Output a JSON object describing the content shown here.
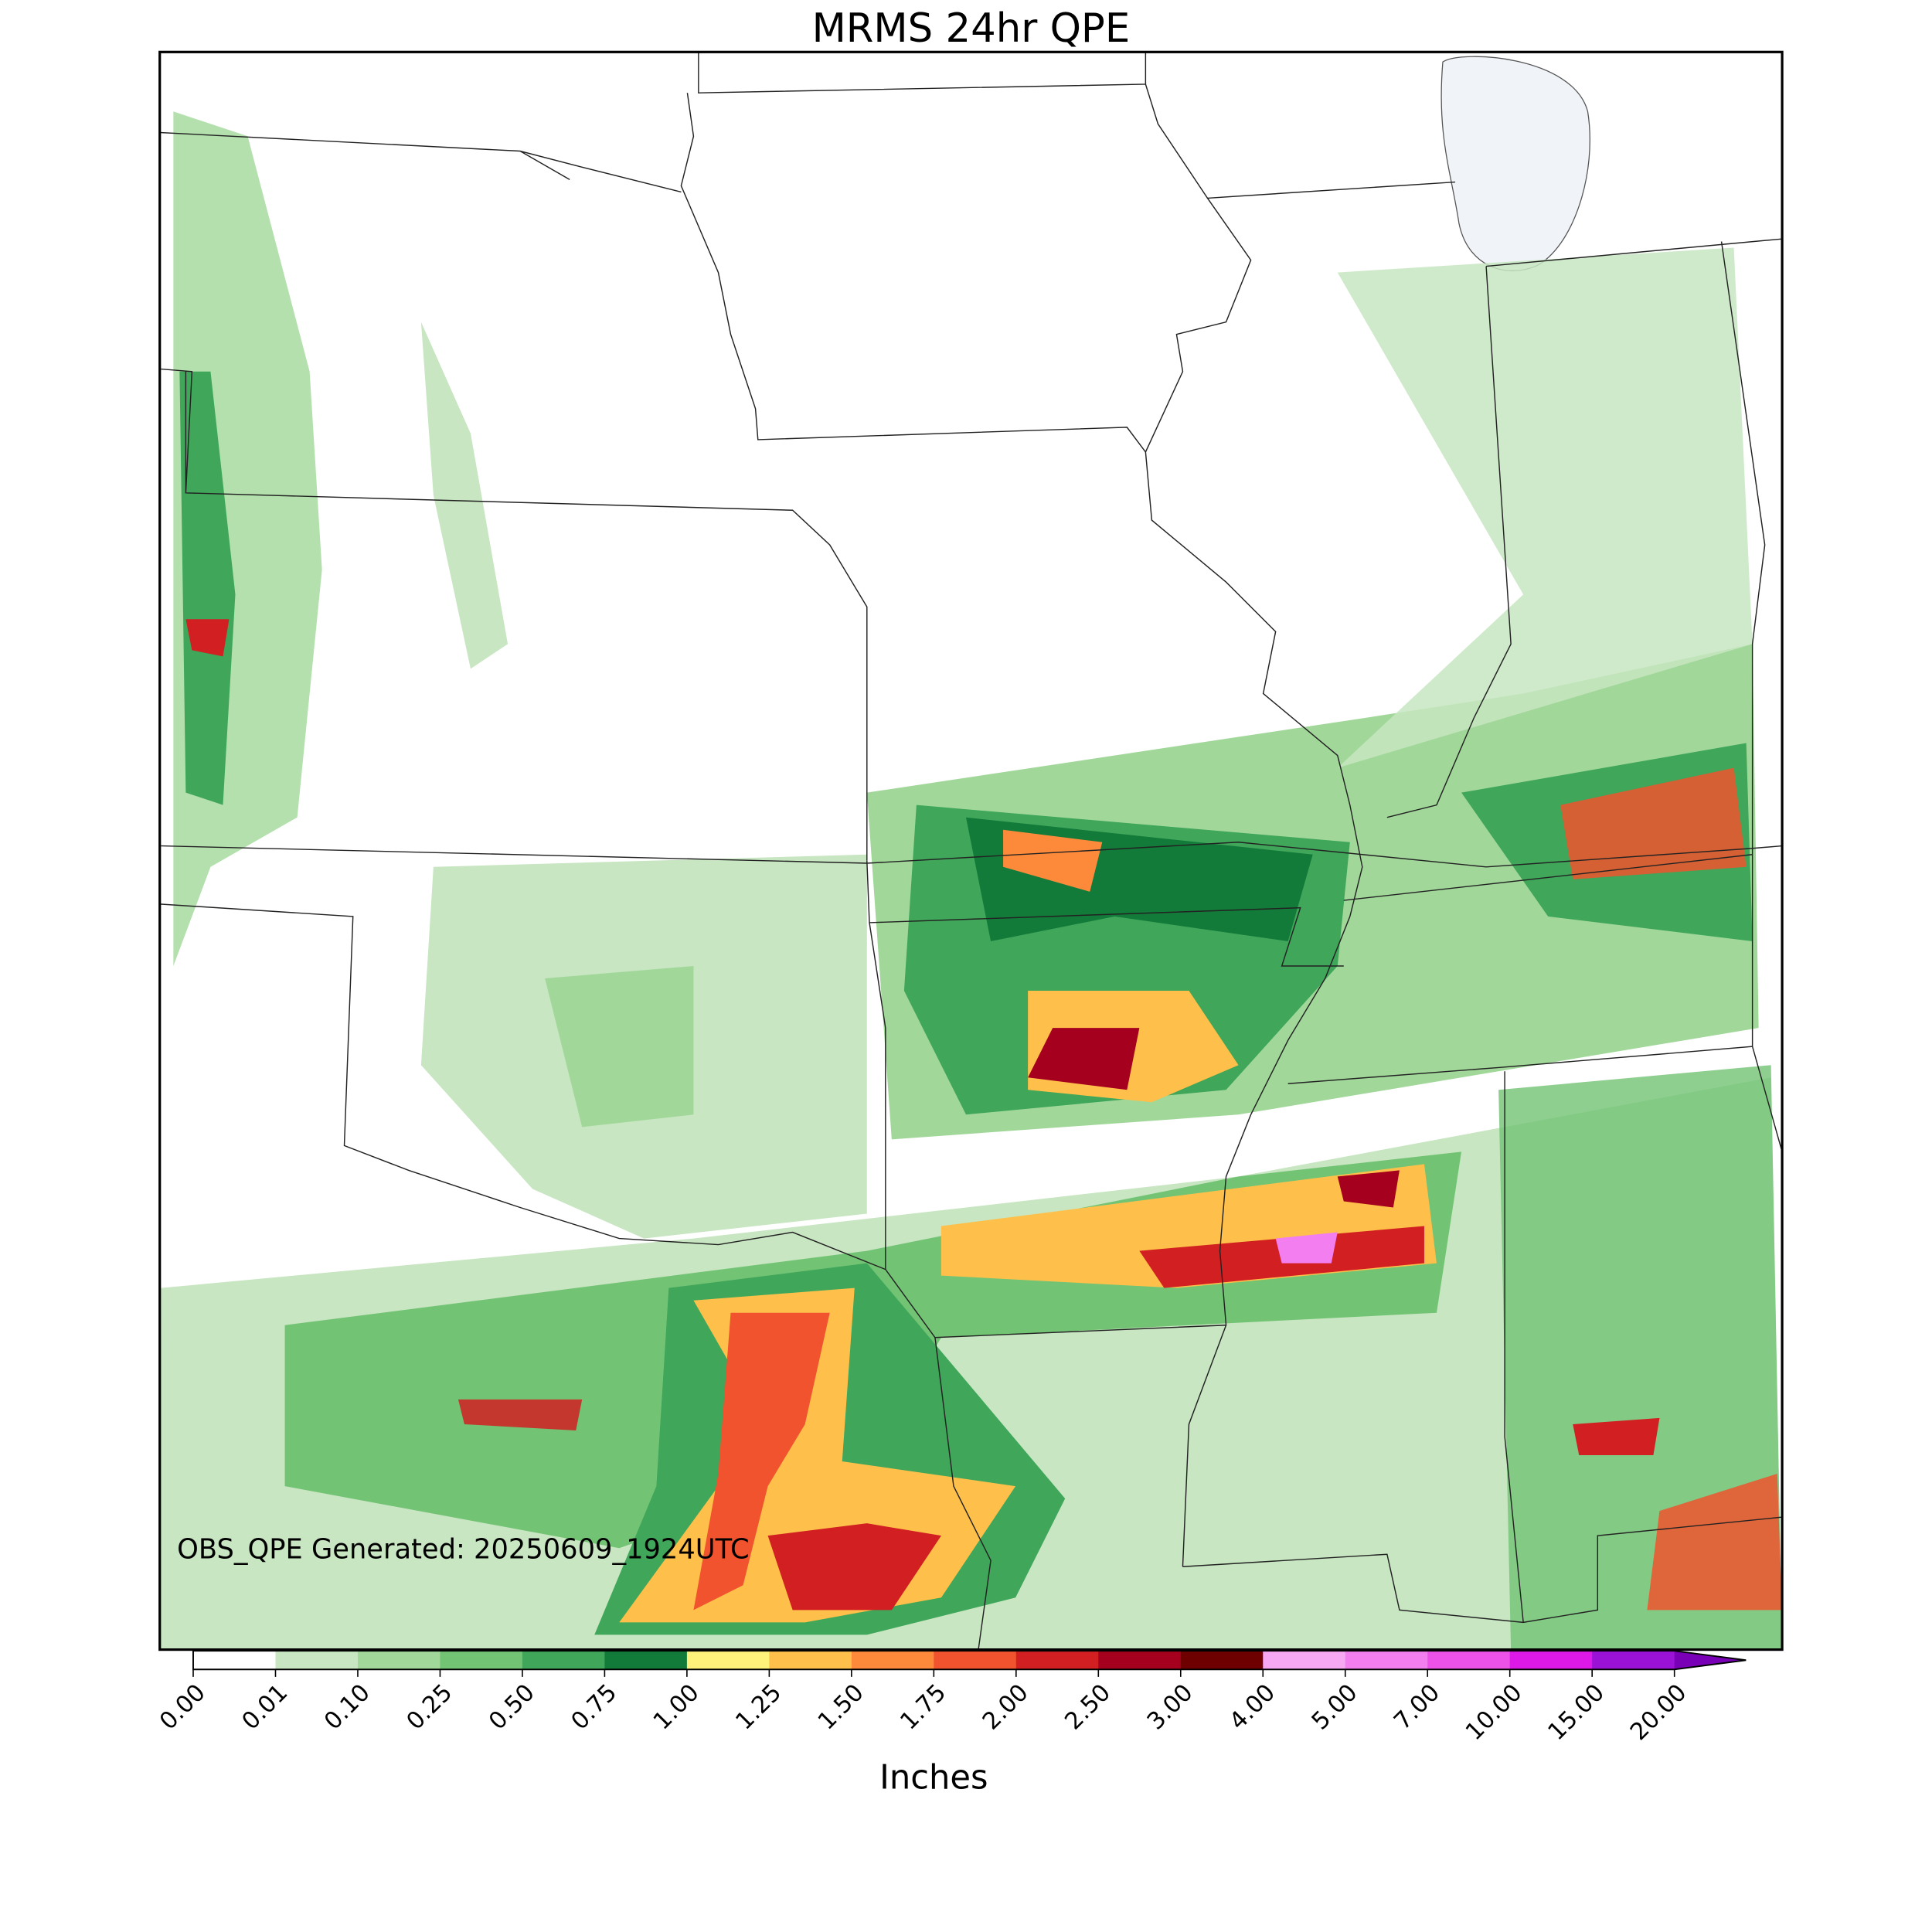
{
  "map": {
    "title": "MRMS 24hr QPE",
    "annotation": "OBS_QPE Generated: 20250609_1924UTC"
  },
  "colorbar": {
    "label": "Inches",
    "extend": "max",
    "over_color": "#7a00b8",
    "ticks": [
      {
        "value": 0,
        "label": "0.00"
      },
      {
        "value": 0.01,
        "label": "0.01"
      },
      {
        "value": 0.1,
        "label": "0.10"
      },
      {
        "value": 0.25,
        "label": "0.25"
      },
      {
        "value": 0.5,
        "label": "0.50"
      },
      {
        "value": 0.75,
        "label": "0.75"
      },
      {
        "value": 1,
        "label": "1.00"
      },
      {
        "value": 1.25,
        "label": "1.25"
      },
      {
        "value": 1.5,
        "label": "1.50"
      },
      {
        "value": 1.75,
        "label": "1.75"
      },
      {
        "value": 2,
        "label": "2.00"
      },
      {
        "value": 2.5,
        "label": "2.50"
      },
      {
        "value": 3,
        "label": "3.00"
      },
      {
        "value": 4,
        "label": "4.00"
      },
      {
        "value": 5,
        "label": "5.00"
      },
      {
        "value": 7,
        "label": "7.00"
      },
      {
        "value": 10,
        "label": "10.00"
      },
      {
        "value": 15,
        "label": "15.00"
      },
      {
        "value": 20,
        "label": "20.00"
      }
    ],
    "colors": [
      "#ffffff",
      "#c7e6c1",
      "#a1d89a",
      "#72c374",
      "#3fa65a",
      "#137b3a",
      "#fff27a",
      "#fec04a",
      "#fd8a3a",
      "#f0532e",
      "#d11f22",
      "#a6001f",
      "#6e0000",
      "#f7a8f2",
      "#f27ef0",
      "#ec52e8",
      "#dc19e6",
      "#9a12d6"
    ]
  }
}
